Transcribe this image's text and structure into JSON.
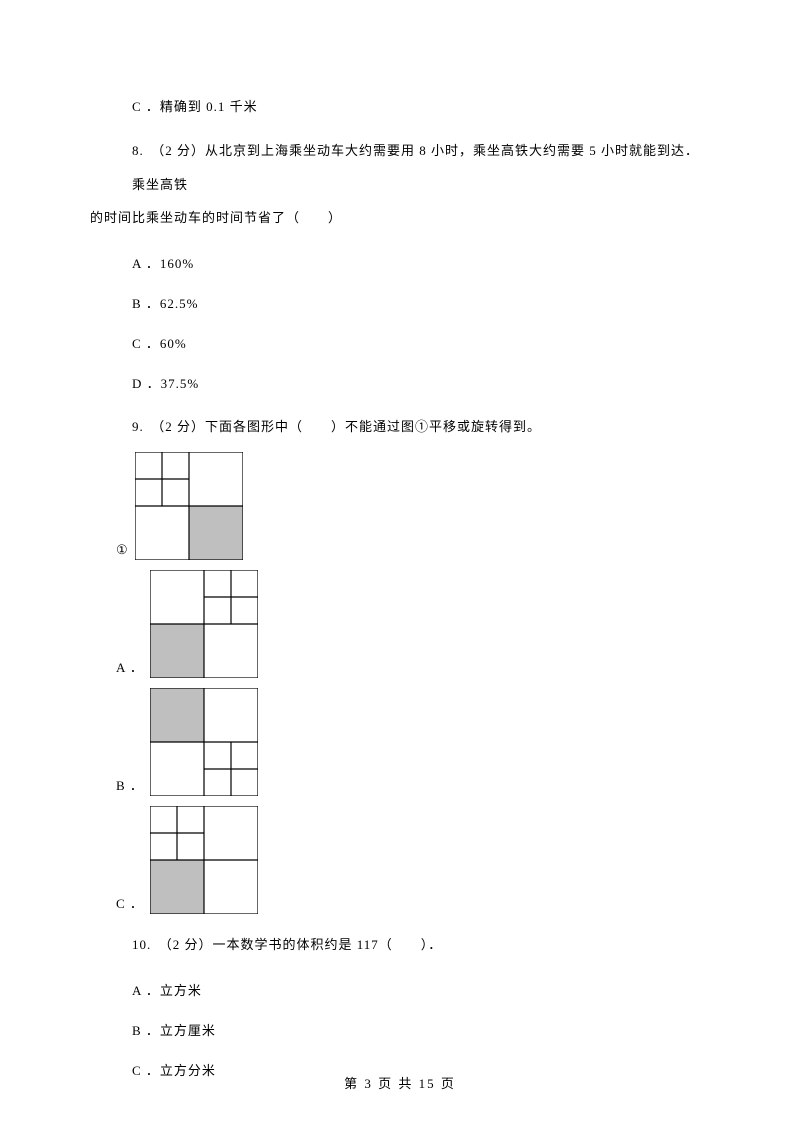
{
  "colors": {
    "text": "#000000",
    "bg": "#ffffff",
    "stroke": "#000000",
    "fill_gray": "#bfbfbf"
  },
  "prev_option_c": "C ．精确到 0.1 千米",
  "q8": {
    "stem_line1": "8.　（2 分）从北京到上海乘坐动车大约需要用 8 小时，乘坐高铁大约需要 5 小时就能到达．乘坐高铁",
    "stem_line2": "的时间比乘坐动车的时间节省了（　　）",
    "options": {
      "A": "A ．160%",
      "B": "B ．62.5%",
      "C": "C ．60%",
      "D": "D ．37.5%"
    }
  },
  "q9": {
    "stem": "9.　（2 分）下面各图形中（　　）不能通过图①平移或旋转得到。",
    "label1": "①",
    "labelA": "A ．",
    "labelB": "B ．",
    "labelC": "C ．",
    "svg": {
      "size": 108,
      "stroke_width": 1.2,
      "fig1": {
        "shaded": "br",
        "small_grid": "tl"
      },
      "figA": {
        "shaded": "bl",
        "small_grid": "tr"
      },
      "figB": {
        "shaded": "tl",
        "small_grid": "br"
      },
      "figC": {
        "shaded": "bl",
        "small_grid": "tl"
      }
    }
  },
  "q10": {
    "stem": "10.　（2 分）一本数学书的体积约是 117（　　）．",
    "options": {
      "A": "A ．立方米",
      "B": "B ．立方厘米",
      "C": "C ．立方分米"
    }
  },
  "footer": "第 3 页 共 15 页"
}
